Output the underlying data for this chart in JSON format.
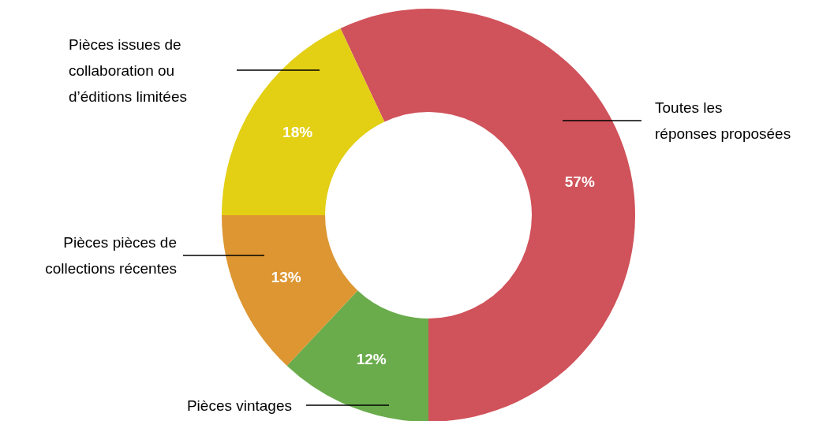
{
  "chart_data": {
    "type": "donut",
    "categories": [
      "Toutes les réponses proposées",
      "Pièces vintages",
      "Pièces pièces de collections récentes",
      "Pièces issues de collaboration ou d’éditions limitées"
    ],
    "values": [
      57,
      12,
      13,
      18
    ],
    "colors": [
      "#d0525a",
      "#6aac4c",
      "#dd9632",
      "#e3cf14"
    ],
    "value_labels": [
      "57%",
      "12%",
      "13%",
      "18%"
    ],
    "legend": false
  }
}
